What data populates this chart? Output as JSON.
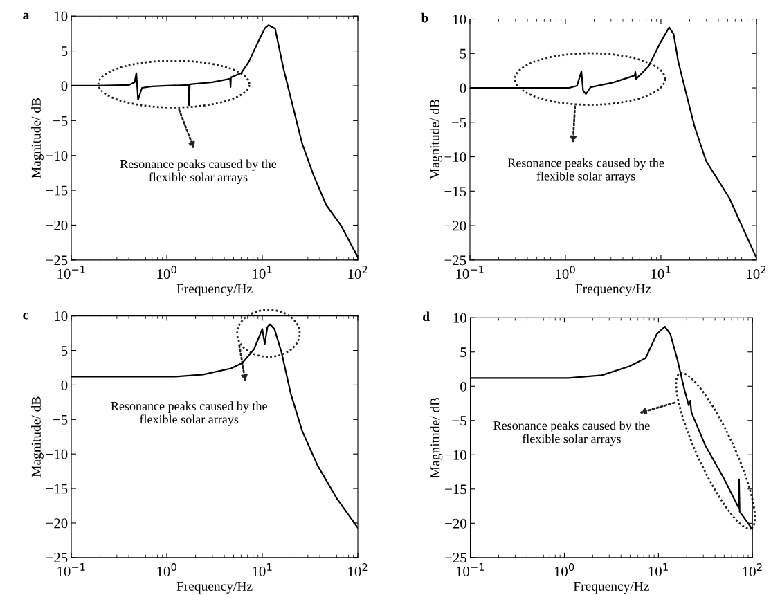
{
  "chart_data": [
    {
      "type": "line",
      "title": "a",
      "xlabel": "Frequency/Hz",
      "ylabel": "Magnitude/ dB",
      "log": "x",
      "xlim": [
        0.1,
        100
      ],
      "ylim": [
        -25,
        10
      ],
      "xticks": [
        {
          "value": 0.1,
          "label": "10$^{−1}$"
        },
        {
          "value": 1,
          "label": "10$^{0}$"
        },
        {
          "value": 10,
          "label": "10$^{1}$"
        },
        {
          "value": 100,
          "label": "10$^{2}$"
        }
      ],
      "yticks": [
        -25,
        -20,
        -15,
        -10,
        -5,
        0,
        5,
        10
      ],
      "grid": false,
      "legend": false,
      "marker": "none",
      "line_style": "solid",
      "annotations": [
        "Resonance peaks caused by the\nflexible solar arrays"
      ],
      "series": [
        {
          "color": "#000000",
          "x": [
            0.1,
            0.19,
            0.4,
            0.46,
            0.48,
            0.5,
            0.55,
            0.7,
            1.0,
            1.69,
            1.71,
            1.74,
            3.0,
            4.6,
            4.65,
            4.7,
            6.0,
            7.2,
            9.1,
            10.7,
            11.6,
            13.6,
            16.7,
            22,
            26,
            34.3,
            46.6,
            67,
            100
          ],
          "values": [
            0,
            0,
            0.1,
            0.5,
            1.8,
            -2,
            -0.3,
            -0.1,
            0,
            0.1,
            -2.8,
            0.2,
            0.5,
            1.0,
            -0.2,
            1.2,
            1.8,
            3.4,
            6.4,
            8.3,
            8.7,
            8.2,
            2.4,
            -4.2,
            -8.2,
            -12.8,
            -17.1,
            -20.1,
            -24.6
          ]
        }
      ]
    },
    {
      "type": "line",
      "title": "b",
      "xlabel": "Frequency/Hz",
      "ylabel": "Magnitude/ dB",
      "log": "x",
      "xlim": [
        0.1,
        100
      ],
      "ylim": [
        -25,
        10
      ],
      "xticks": [
        {
          "value": 0.1,
          "label": "10$^{−1}$"
        },
        {
          "value": 1,
          "label": "10$^{0}$"
        },
        {
          "value": 10,
          "label": "10$^{1}$"
        },
        {
          "value": 100,
          "label": "10$^{2}$"
        }
      ],
      "yticks": [
        -25,
        -20,
        -15,
        -10,
        -5,
        0,
        5,
        10
      ],
      "grid": false,
      "legend": false,
      "marker": "none",
      "line_style": "solid",
      "annotations": [
        "Resonance peaks caused by the\nflexible solar arrays"
      ],
      "series": [
        {
          "color": "#000000",
          "x": [
            0.1,
            0.5,
            1.1,
            1.32,
            1.47,
            1.53,
            1.64,
            1.83,
            3.2,
            5.3,
            5.4,
            5.5,
            7.4,
            9.8,
            12.2,
            13.6,
            15.2,
            19.0,
            22.5,
            29.7,
            52,
            100
          ],
          "values": [
            0,
            0,
            0,
            0.3,
            2.4,
            -0.4,
            -0.9,
            0.1,
            0.8,
            1.8,
            2.3,
            1.3,
            3.1,
            6.5,
            8.8,
            7.8,
            3.8,
            -1.6,
            -5.6,
            -10.6,
            -16,
            -24.7
          ]
        }
      ]
    },
    {
      "type": "line",
      "title": "c",
      "xlabel": "Frequency/Hz",
      "ylabel": "Magnitude/ dB",
      "log": "x",
      "xlim": [
        0.1,
        100
      ],
      "ylim": [
        -25,
        10
      ],
      "xticks": [
        {
          "value": 0.1,
          "label": "10$^{−1}$"
        },
        {
          "value": 1,
          "label": "10$^{0}$"
        },
        {
          "value": 10,
          "label": "10$^{1}$"
        },
        {
          "value": 100,
          "label": "10$^{2}$"
        }
      ],
      "yticks": [
        -25,
        -20,
        -15,
        -10,
        -5,
        0,
        5,
        10
      ],
      "grid": false,
      "legend": false,
      "marker": "none",
      "line_style": "solid",
      "annotations": [
        "Resonance peaks caused by the\nflexible solar arrays"
      ],
      "series": [
        {
          "color": "#000000",
          "x": [
            0.1,
            1.2,
            2.4,
            4.7,
            6.2,
            8.2,
            10.0,
            10.6,
            11.3,
            12.0,
            13.4,
            15.9,
            19.9,
            26.2,
            38,
            60,
            100
          ],
          "values": [
            1.2,
            1.2,
            1.5,
            2.4,
            3.2,
            5.2,
            8.1,
            5.9,
            8.4,
            8.8,
            8.1,
            4.7,
            -1.3,
            -6.7,
            -11.7,
            -16.4,
            -20.7
          ]
        }
      ]
    },
    {
      "type": "line",
      "title": "d",
      "xlabel": "Frequency/Hz",
      "ylabel": "Magnitude/ dB",
      "log": "x",
      "xlim": [
        0.1,
        100
      ],
      "ylim": [
        -25,
        10
      ],
      "xticks": [
        {
          "value": 0.1,
          "label": "10$^{−1}$"
        },
        {
          "value": 1,
          "label": "10$^{0}$"
        },
        {
          "value": 10,
          "label": "10$^{1}$"
        },
        {
          "value": 100,
          "label": "10$^{2}$"
        }
      ],
      "yticks": [
        -25,
        -20,
        -15,
        -10,
        -5,
        0,
        5,
        10
      ],
      "grid": false,
      "legend": false,
      "marker": "none",
      "line_style": "solid",
      "annotations": [
        "Resonance peaks caused by the\nflexible solar arrays"
      ],
      "series": [
        {
          "color": "#000000",
          "x": [
            0.1,
            1.1,
            2.5,
            4.9,
            7.3,
            9.6,
            11.7,
            13.4,
            15.9,
            18.9,
            21.0,
            21.8,
            22.4,
            31.4,
            49,
            71,
            72,
            73,
            100
          ],
          "values": [
            1.2,
            1.2,
            1.6,
            2.9,
            4.1,
            7.6,
            8.7,
            7.6,
            3.9,
            -0.5,
            -2.8,
            -2.1,
            -3.8,
            -8.6,
            -13.3,
            -17.7,
            -13.6,
            -18.3,
            -20.9
          ]
        }
      ]
    }
  ]
}
